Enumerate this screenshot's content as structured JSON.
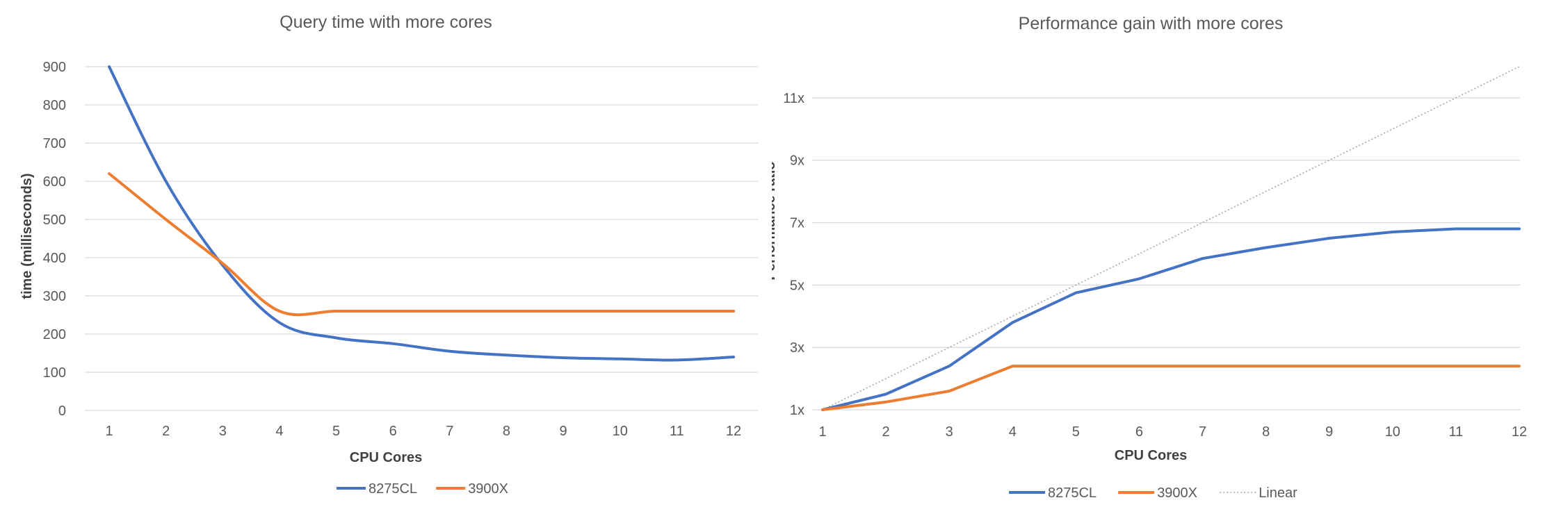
{
  "chart_data": [
    {
      "type": "line",
      "title": "Query time with more cores",
      "xlabel": "CPU Cores",
      "ylabel": "time (milliseconds)",
      "x": [
        1,
        2,
        3,
        4,
        5,
        6,
        7,
        8,
        9,
        10,
        11,
        12
      ],
      "xticks": [
        "1",
        "2",
        "3",
        "4",
        "5",
        "6",
        "7",
        "8",
        "9",
        "10",
        "11",
        "12"
      ],
      "ylim": [
        0,
        900
      ],
      "yticks": [
        "0",
        "100",
        "200",
        "300",
        "400",
        "500",
        "600",
        "700",
        "800",
        "900"
      ],
      "grid": true,
      "legend_position": "bottom",
      "series": [
        {
          "name": "8275CL",
          "color": "#4472c4",
          "values": [
            900,
            600,
            380,
            230,
            190,
            175,
            155,
            145,
            138,
            135,
            132,
            140
          ]
        },
        {
          "name": "3900X",
          "color": "#ed7d31",
          "values": [
            620,
            500,
            385,
            260,
            260,
            260,
            260,
            260,
            260,
            260,
            260,
            260
          ]
        }
      ]
    },
    {
      "type": "line",
      "title": "Performance gain with more cores",
      "xlabel": "CPU Cores",
      "ylabel": "Performance ratio",
      "x": [
        1,
        2,
        3,
        4,
        5,
        6,
        7,
        8,
        9,
        10,
        11,
        12
      ],
      "xticks": [
        "1",
        "2",
        "3",
        "4",
        "5",
        "6",
        "7",
        "8",
        "9",
        "10",
        "11",
        "12"
      ],
      "ylim": [
        1,
        12
      ],
      "yticks": [
        "1x",
        "3x",
        "5x",
        "7x",
        "9x",
        "11x"
      ],
      "grid": true,
      "legend_position": "bottom",
      "series": [
        {
          "name": "8275CL",
          "color": "#4472c4",
          "values": [
            1,
            1.5,
            2.4,
            3.8,
            4.75,
            5.2,
            5.85,
            6.2,
            6.5,
            6.7,
            6.8,
            6.8
          ]
        },
        {
          "name": "3900X",
          "color": "#ed7d31",
          "values": [
            1,
            1.25,
            1.6,
            2.4,
            2.4,
            2.4,
            2.4,
            2.4,
            2.4,
            2.4,
            2.4,
            2.4
          ]
        },
        {
          "name": "Linear",
          "color": "#a6a6a6",
          "style": "dotted",
          "values": [
            1,
            2,
            3,
            4,
            5,
            6,
            7,
            8,
            9,
            10,
            11,
            12
          ]
        }
      ]
    }
  ]
}
